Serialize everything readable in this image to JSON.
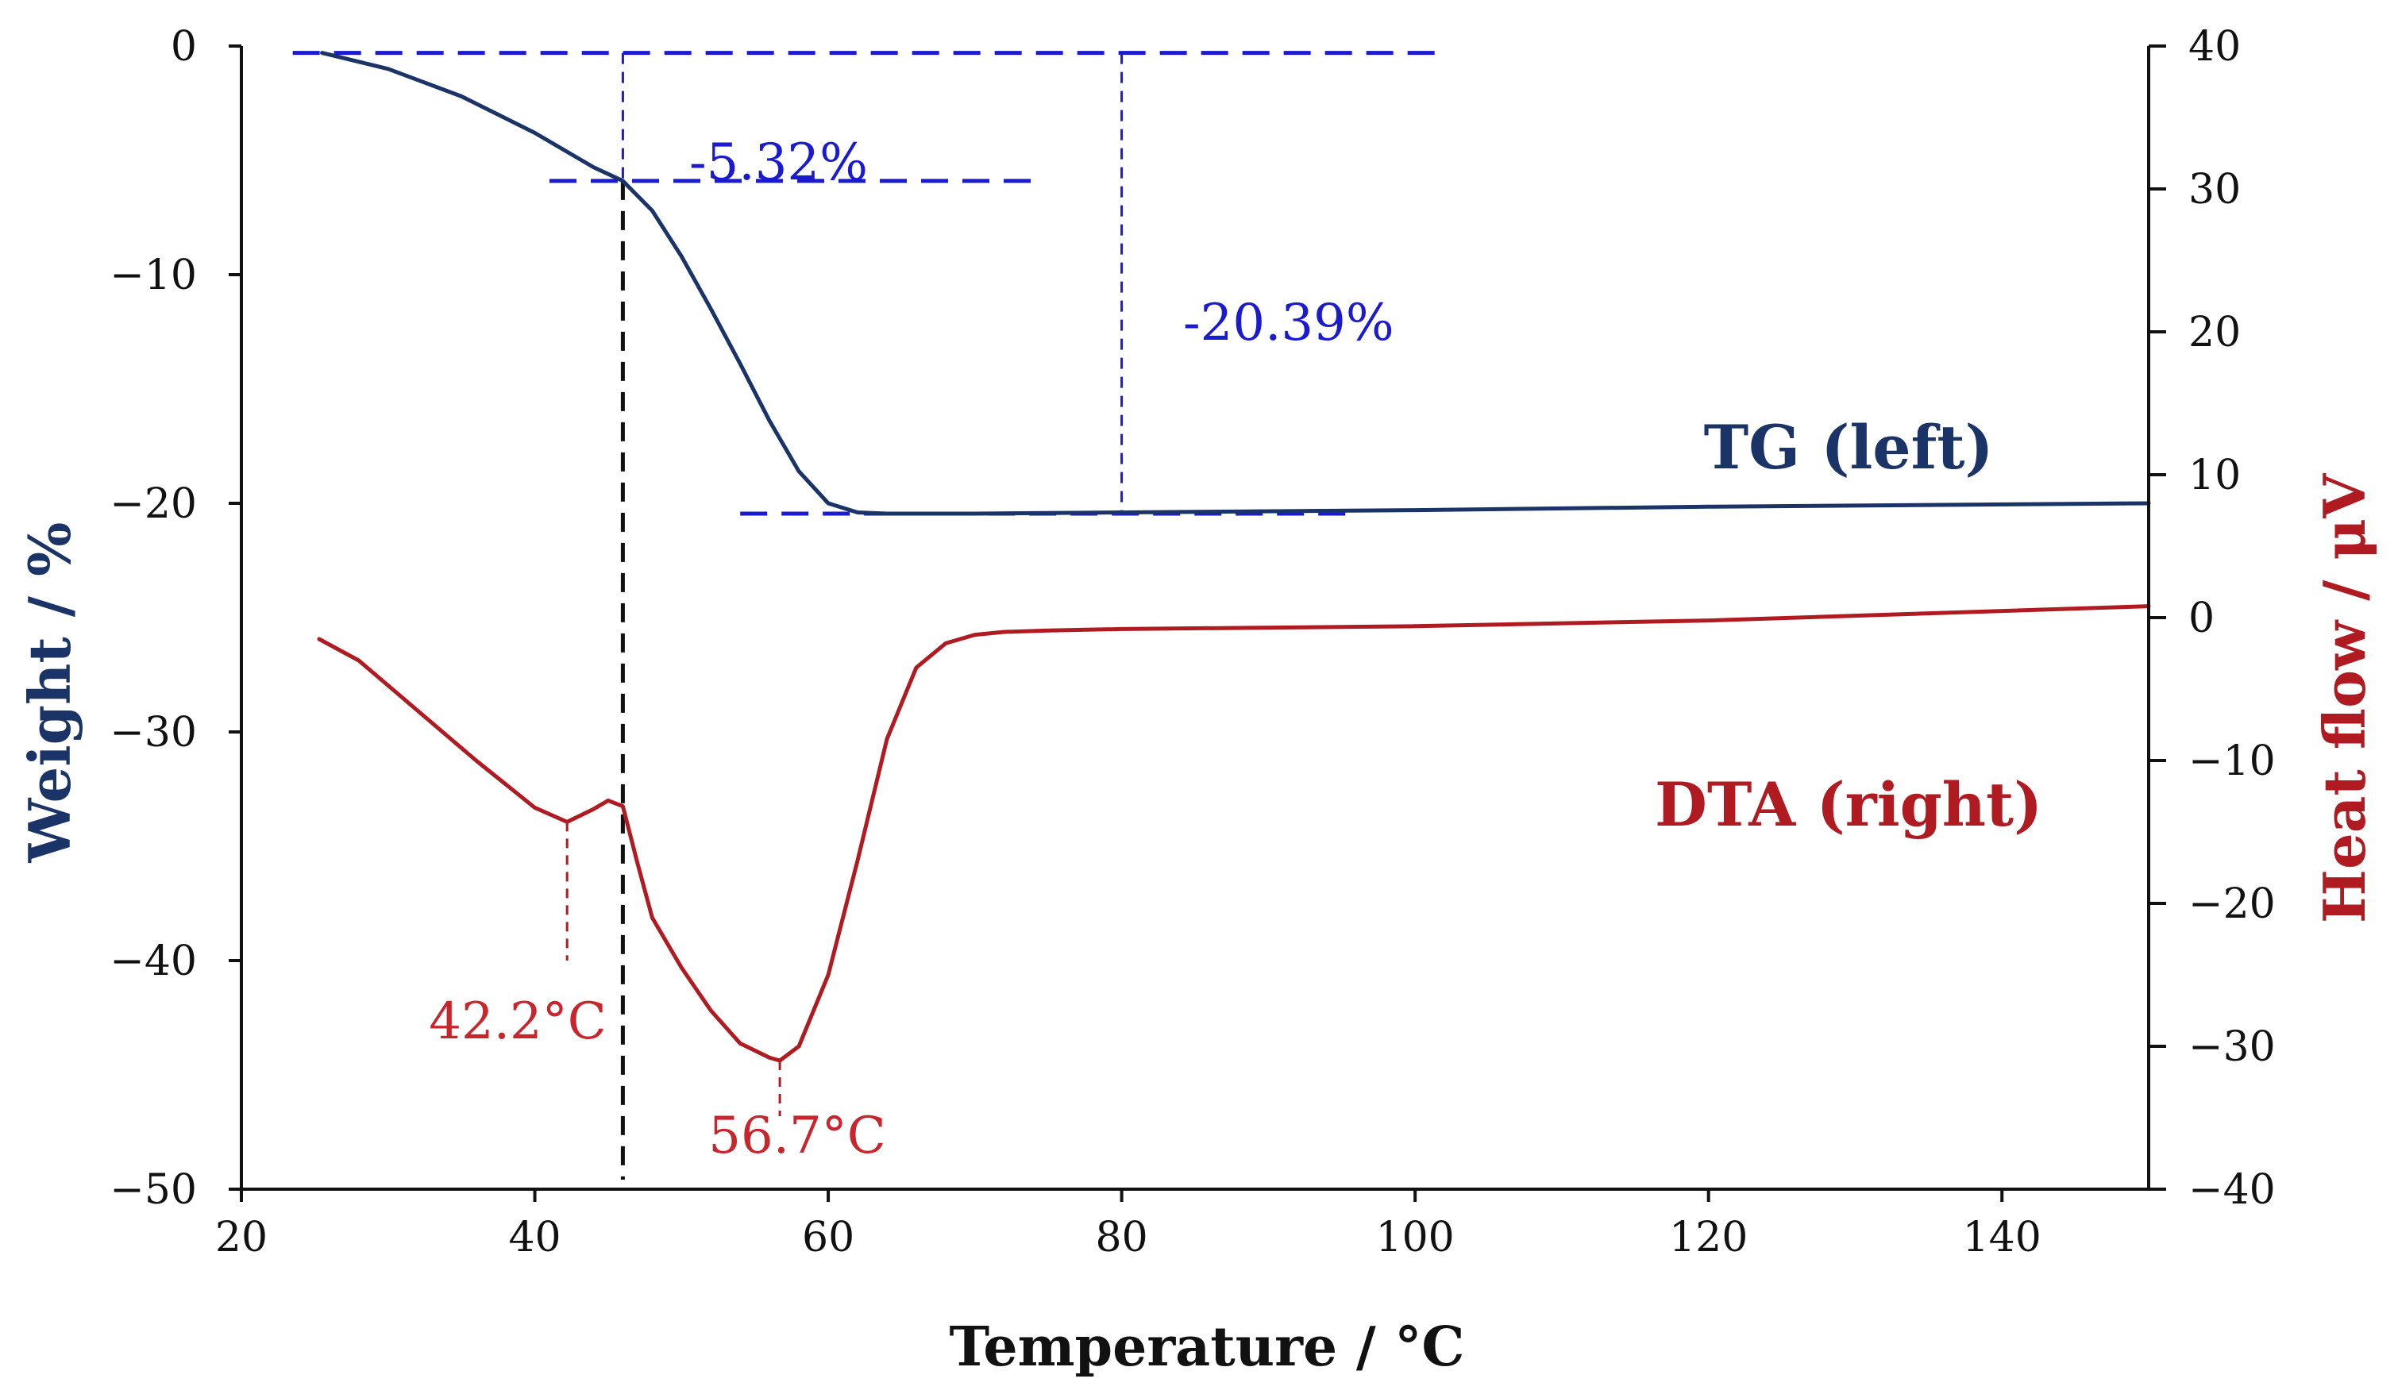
{
  "chart_data": {
    "type": "line",
    "xlabel": "Temperature / °C",
    "ylabel_left": "Weight / %",
    "ylabel_right": "Heat flow / μV",
    "xlim": [
      20,
      150
    ],
    "ylim_left": [
      -50,
      0
    ],
    "ylim_right": [
      -40,
      40
    ],
    "x_ticks": [
      20,
      40,
      60,
      80,
      100,
      120,
      140
    ],
    "y_left_ticks": [
      0,
      -10,
      -20,
      -30,
      -40,
      -50
    ],
    "y_right_ticks": [
      40,
      30,
      20,
      10,
      0,
      -10,
      -20,
      -30,
      -40
    ],
    "y_left_tick_labels": [
      "0",
      "−10",
      "−20",
      "−30",
      "−40",
      "−50"
    ],
    "y_right_tick_labels": [
      "40",
      "30",
      "20",
      "10",
      "0",
      "−10",
      "−20",
      "−30",
      "−40"
    ],
    "series": [
      {
        "name": "TG",
        "label": "TG (left)",
        "axis": "left",
        "color": "#1a3468",
        "x": [
          25.5,
          30,
          35,
          40,
          44,
          46,
          48,
          50,
          52,
          54,
          56,
          58,
          60,
          62,
          64,
          70,
          80,
          100,
          120,
          150
        ],
        "y": [
          -0.3,
          -1.0,
          -2.2,
          -3.8,
          -5.3,
          -5.9,
          -7.2,
          -9.2,
          -11.5,
          -13.9,
          -16.4,
          -18.6,
          -20.0,
          -20.4,
          -20.45,
          -20.45,
          -20.4,
          -20.3,
          -20.15,
          -20.0
        ]
      },
      {
        "name": "DTA",
        "label": "DTA (right)",
        "axis": "right",
        "color": "#b01b22",
        "x": [
          25.3,
          28,
          32,
          36,
          40,
          42.2,
          44,
          45,
          46,
          47,
          48,
          50,
          52,
          54,
          56,
          56.7,
          58,
          60,
          62,
          64,
          66,
          68,
          70,
          72,
          75,
          80,
          100,
          120,
          150
        ],
        "y": [
          -1.5,
          -3.0,
          -6.5,
          -10.0,
          -13.3,
          -14.3,
          -13.4,
          -12.8,
          -13.2,
          -17.2,
          -21.0,
          -24.5,
          -27.5,
          -29.8,
          -30.8,
          -31.0,
          -30.0,
          -25.0,
          -17.0,
          -8.5,
          -3.5,
          -1.8,
          -1.2,
          -1.0,
          -0.9,
          -0.8,
          -0.6,
          -0.2,
          0.8
        ]
      }
    ],
    "annotations": {
      "tg_step1": "-5.32%",
      "tg_step_total": "-20.39%",
      "dta_peak1": "42.2°C",
      "dta_peak2": "56.7°C",
      "peak1_x": 42.2,
      "peak2_x": 56.7,
      "inflection_x": 46,
      "tg_start_y": -0.3,
      "tg_step1_y": -5.9,
      "tg_end_y": -20.45,
      "total_line_x": 80
    },
    "colors": {
      "tg": "#1a3468",
      "dta": "#b01b22",
      "guide_blue": "#1a1ad0",
      "guide_black": "#111111",
      "axis": "#111111"
    }
  }
}
